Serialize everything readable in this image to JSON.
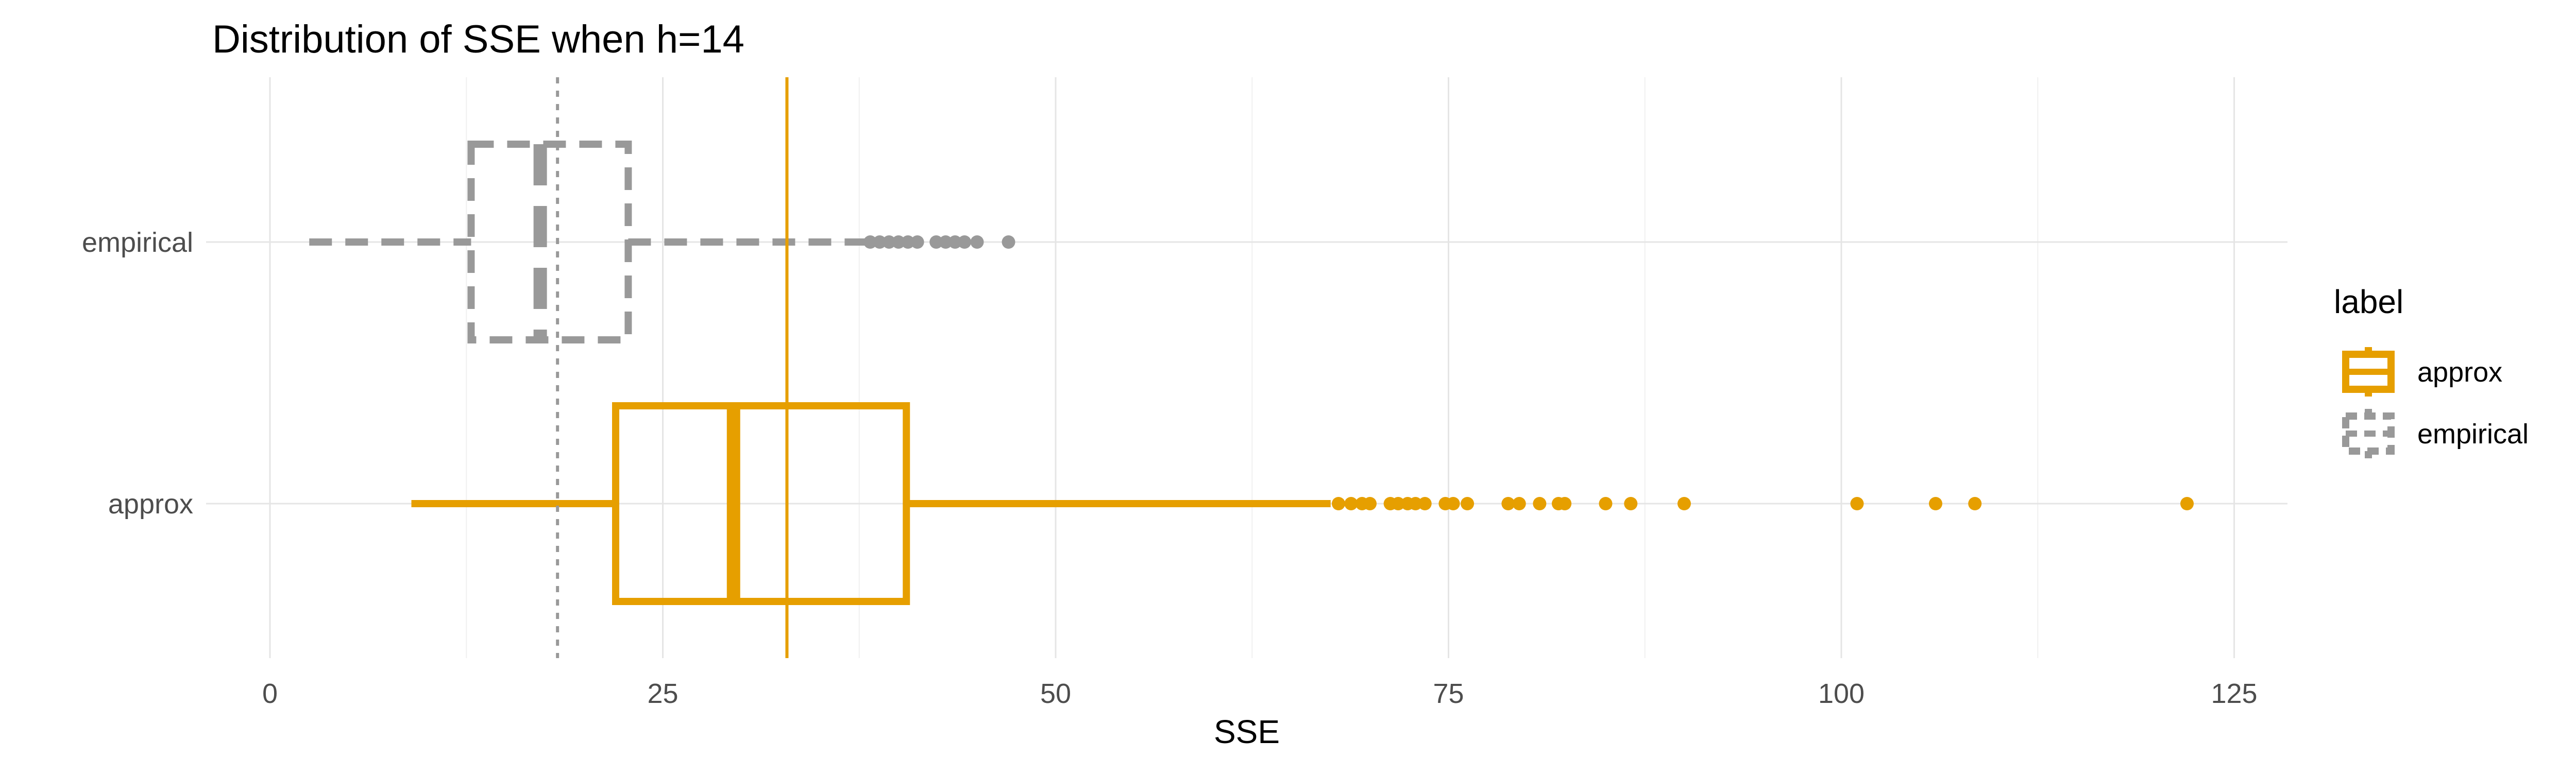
{
  "chart_data": {
    "type": "boxplot",
    "title": "Distribution of SSE when h=14",
    "xlabel": "SSE",
    "ylabel": "",
    "xlim": [
      -1,
      128
    ],
    "x_ticks": [
      0,
      25,
      50,
      75,
      100,
      125
    ],
    "x_tick_labels": [
      "0",
      "25",
      "50",
      "75",
      "100",
      "125"
    ],
    "grid": true,
    "orientation": "horizontal",
    "legend": {
      "title": "label",
      "position": "right",
      "entries": [
        "approx",
        "empirical"
      ]
    },
    "series": [
      {
        "name": "empirical",
        "color": "#999999",
        "linestyle": "dashed",
        "whisker_low": 2.5,
        "q1": 12.8,
        "median": 17.2,
        "q3": 22.8,
        "whisker_high": 38,
        "outliers": [
          38.2,
          38.8,
          39.4,
          40,
          40.6,
          41.2,
          42.4,
          43,
          43.6,
          44.2,
          45,
          47
        ]
      },
      {
        "name": "approx",
        "color": "#E69F00",
        "linestyle": "solid",
        "whisker_low": 9,
        "q1": 22,
        "median": 29.5,
        "q3": 40.5,
        "whisker_high": 67.5,
        "outliers": [
          68,
          68.8,
          69.5,
          70,
          71.3,
          71.8,
          72.4,
          72.9,
          73.5,
          74.8,
          75.3,
          76.2,
          78.8,
          79.5,
          80.8,
          82,
          82.4,
          85,
          86.6,
          90,
          101,
          106,
          108.5,
          122
        ]
      }
    ],
    "reference_lines": [
      {
        "value": 18.3,
        "color": "#999999",
        "linestyle": "dotted"
      },
      {
        "value": 32.9,
        "color": "#E69F00",
        "linestyle": "solid"
      }
    ]
  }
}
